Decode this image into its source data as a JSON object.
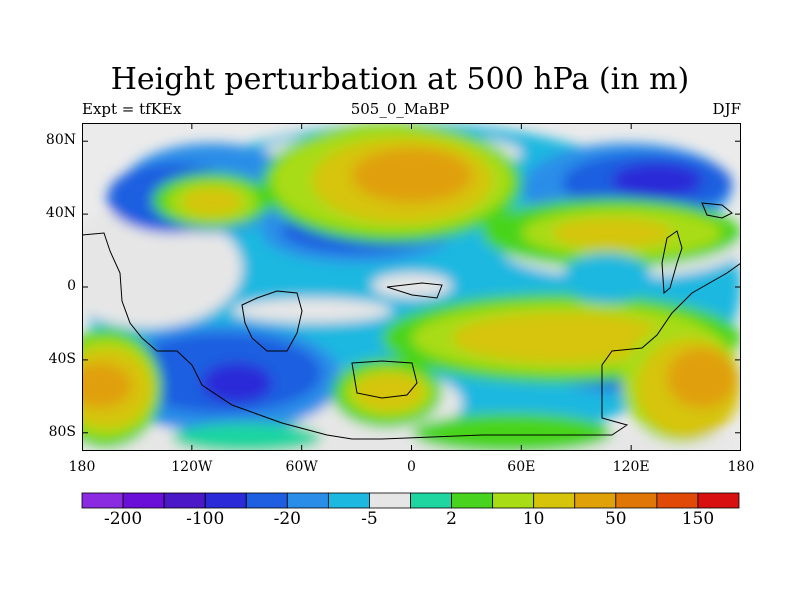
{
  "title": "Height perturbation at 500 hPa (in m)",
  "subtitle_left": "Expt = tfKEx",
  "subtitle_center": "505_0_MaBP",
  "subtitle_right": "DJF",
  "axes": {
    "x_ticks": [
      "180",
      "120W",
      "60W",
      "0",
      "60E",
      "120E",
      "180"
    ],
    "y_ticks": [
      "80N",
      "40N",
      "0",
      "40S",
      "80S"
    ]
  },
  "colorbar": {
    "colors": [
      "#8a2be2",
      "#6a0fd8",
      "#4b18c8",
      "#2a2ad8",
      "#1e5ee0",
      "#2a8ee8",
      "#1cb8e0",
      "#e6e6e6",
      "#1fd5a0",
      "#48d41e",
      "#a8dc14",
      "#d6c40a",
      "#e0a008",
      "#e07606",
      "#e04a06",
      "#d81010"
    ],
    "labels": [
      "-200",
      "-100",
      "-20",
      "-5",
      "2",
      "10",
      "50",
      "150"
    ]
  },
  "chart_data": {
    "type": "heatmap",
    "title": "Height perturbation at 500 hPa (in m)",
    "x_range": [
      -180,
      180
    ],
    "y_range": [
      -90,
      90
    ],
    "xlabel": "",
    "ylabel": ""
  }
}
